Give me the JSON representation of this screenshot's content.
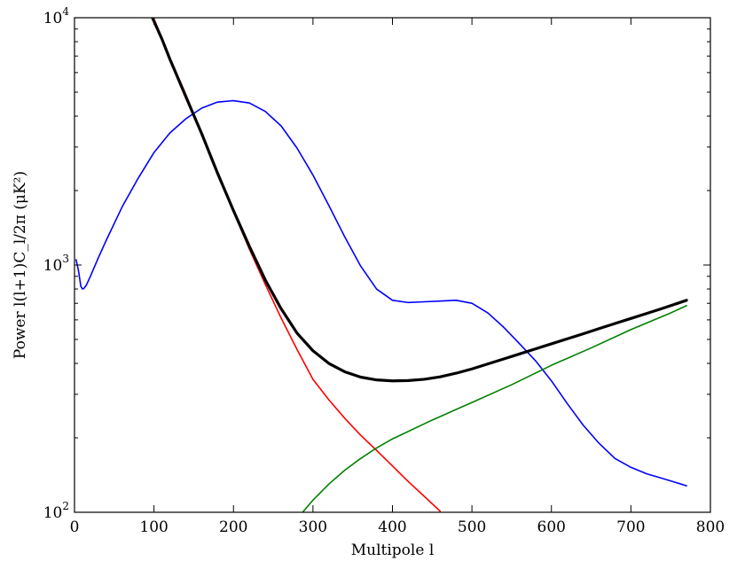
{
  "chart_data": {
    "type": "line",
    "title": "",
    "xlabel": "Multipole l",
    "ylabel": "Power l(l+1)C_l/2π (μK²)",
    "xlim": [
      0,
      800
    ],
    "ylim": [
      100,
      10000
    ],
    "yscale": "log",
    "grid": false,
    "x_ticks": [
      0,
      100,
      200,
      300,
      400,
      500,
      600,
      700,
      800
    ],
    "x_tick_labels": [
      "0",
      "100",
      "200",
      "300",
      "400",
      "500",
      "600",
      "700",
      "800"
    ],
    "y_ticks": [
      {
        "value": 100,
        "base": "10",
        "exp": "2"
      },
      {
        "value": 1000,
        "base": "10",
        "exp": "3"
      },
      {
        "value": 10000,
        "base": "10",
        "exp": "4"
      }
    ],
    "series": [
      {
        "color": "#0000ff",
        "linewidth": 1.6,
        "x": [
          2,
          5,
          8,
          10,
          12,
          15,
          20,
          30,
          40,
          60,
          80,
          100,
          120,
          140,
          160,
          180,
          200,
          220,
          240,
          260,
          280,
          300,
          320,
          340,
          360,
          380,
          400,
          420,
          440,
          460,
          480,
          500,
          520,
          540,
          560,
          580,
          600,
          620,
          640,
          660,
          680,
          700,
          720,
          740,
          770
        ],
        "y": [
          1050,
          950,
          820,
          800,
          805,
          830,
          900,
          1070,
          1260,
          1720,
          2240,
          2850,
          3420,
          3900,
          4310,
          4560,
          4620,
          4520,
          4180,
          3650,
          2970,
          2310,
          1740,
          1300,
          990,
          800,
          720,
          705,
          710,
          715,
          720,
          700,
          640,
          560,
          480,
          410,
          340,
          275,
          225,
          190,
          165,
          152,
          143,
          137,
          128
        ]
      },
      {
        "color": "#ff0000",
        "linewidth": 1.6,
        "x": [
          100,
          120,
          140,
          160,
          180,
          200,
          220,
          240,
          260,
          280,
          300,
          320,
          340,
          360,
          380,
          400,
          420,
          440,
          460
        ],
        "y": [
          9900,
          6900,
          4900,
          3400,
          2350,
          1640,
          1160,
          835,
          610,
          455,
          345,
          285,
          240,
          205,
          178,
          154,
          133,
          116,
          101
        ]
      },
      {
        "color": "#008000",
        "linewidth": 1.6,
        "x": [
          287,
          300,
          320,
          340,
          360,
          380,
          400,
          450,
          500,
          550,
          600,
          650,
          700,
          750,
          770
        ],
        "y": [
          100,
          112,
          130,
          148,
          165,
          182,
          198,
          236,
          278,
          328,
          393,
          462,
          548,
          640,
          685
        ]
      },
      {
        "color": "#000000",
        "linewidth": 3.2,
        "x": [
          98,
          110,
          120,
          140,
          160,
          180,
          200,
          220,
          240,
          260,
          280,
          300,
          320,
          340,
          360,
          380,
          400,
          420,
          440,
          460,
          480,
          500,
          520,
          540,
          560,
          580,
          600,
          620,
          640,
          660,
          680,
          700,
          720,
          740,
          770
        ],
        "y": [
          10000,
          8200,
          6800,
          4800,
          3400,
          2350,
          1660,
          1190,
          870,
          665,
          530,
          450,
          400,
          370,
          352,
          343,
          340,
          341,
          345,
          353,
          365,
          380,
          398,
          417,
          437,
          458,
          480,
          503,
          527,
          553,
          580,
          608,
          637,
          668,
          720
        ]
      }
    ]
  }
}
